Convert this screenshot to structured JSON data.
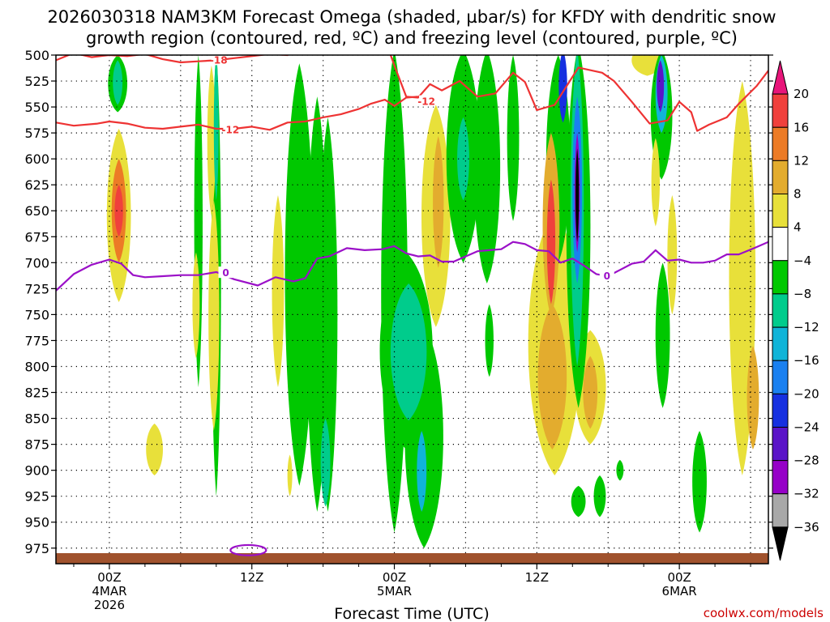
{
  "chart_data": {
    "type": "heatmap",
    "title_line1": "2026030318 NAM3KM Forecast Omega (shaded, µbar/s) for KFDY with dendritic snow",
    "title_line2": "growth region (contoured, red, ºC) and freezing level (contoured, purple, ºC)",
    "xlabel": "Forecast Time (UTC)",
    "credit": "coolwx.com/models",
    "x_range_hours": [
      -4.5,
      55.5
    ],
    "x_ticks": [
      {
        "hour": 0,
        "lines": [
          "00Z",
          "4MAR",
          "2026"
        ]
      },
      {
        "hour": 12,
        "lines": [
          "12Z"
        ]
      },
      {
        "hour": 24,
        "lines": [
          "00Z",
          "5MAR"
        ]
      },
      {
        "hour": 36,
        "lines": [
          "12Z"
        ]
      },
      {
        "hour": 48,
        "lines": [
          "00Z",
          "6MAR"
        ]
      }
    ],
    "y_range_hpa": [
      500,
      990
    ],
    "y_ticks": [
      "500",
      "525",
      "550",
      "575",
      "600",
      "625",
      "650",
      "675",
      "700",
      "725",
      "750",
      "775",
      "800",
      "825",
      "850",
      "875",
      "900",
      "925",
      "950",
      "975"
    ],
    "colorbar": {
      "labels": [
        "20",
        "16",
        "12",
        "8",
        "4",
        "−4",
        "−8",
        "−12",
        "−16",
        "−20",
        "−24",
        "−28",
        "−32",
        "−36"
      ],
      "colors": [
        "#e8157a",
        "#f0403c",
        "#ec7b26",
        "#e3ac2e",
        "#e8e03a",
        "#ffffff",
        "#00c800",
        "#00cc8c",
        "#10b4d8",
        "#1a80f0",
        "#1630e0",
        "#5a14c8",
        "#9600c8",
        "#a8a8a8",
        "#000000"
      ]
    },
    "ground_color": "#a0522d",
    "omega_regions": [
      {
        "hour": 0.8,
        "p_top": 571,
        "p_bot": 738,
        "half_width": 1.0,
        "value": 6
      },
      {
        "hour": 0.8,
        "p_top": 600,
        "p_bot": 700,
        "half_width": 0.6,
        "value": 12
      },
      {
        "hour": 0.8,
        "p_top": 625,
        "p_bot": 675,
        "half_width": 0.35,
        "value": 18
      },
      {
        "hour": 0.7,
        "p_top": 500,
        "p_bot": 555,
        "half_width": 0.8,
        "value": -6
      },
      {
        "hour": 0.7,
        "p_top": 505,
        "p_bot": 548,
        "half_width": 0.4,
        "value": -10
      },
      {
        "hour": 3.8,
        "p_top": 855,
        "p_bot": 905,
        "half_width": 0.7,
        "value": 6
      },
      {
        "hour": 7.5,
        "p_top": 500,
        "p_bot": 820,
        "half_width": 0.35,
        "value": -6
      },
      {
        "hour": 7.3,
        "p_top": 690,
        "p_bot": 792,
        "half_width": 0.3,
        "value": 6
      },
      {
        "hour": 9.0,
        "p_top": 495,
        "p_bot": 925,
        "half_width": 0.4,
        "value": -6
      },
      {
        "hour": 8.6,
        "p_top": 510,
        "p_bot": 655,
        "half_width": 0.35,
        "value": 6
      },
      {
        "hour": 8.8,
        "p_top": 640,
        "p_bot": 862,
        "half_width": 0.45,
        "value": 6
      },
      {
        "hour": 9.0,
        "p_top": 500,
        "p_bot": 640,
        "half_width": 0.2,
        "value": -10
      },
      {
        "hour": 14.2,
        "p_top": 635,
        "p_bot": 820,
        "half_width": 0.5,
        "value": 6
      },
      {
        "hour": 15.2,
        "p_top": 885,
        "p_bot": 925,
        "half_width": 0.2,
        "value": 6
      },
      {
        "hour": 16.0,
        "p_top": 508,
        "p_bot": 915,
        "half_width": 1.2,
        "value": -6
      },
      {
        "hour": 17.5,
        "p_top": 540,
        "p_bot": 940,
        "half_width": 0.9,
        "value": -6
      },
      {
        "hour": 18.4,
        "p_top": 560,
        "p_bot": 940,
        "half_width": 0.8,
        "value": -6
      },
      {
        "hour": 18.2,
        "p_top": 850,
        "p_bot": 935,
        "half_width": 0.4,
        "value": -10
      },
      {
        "hour": 24.0,
        "p_top": 495,
        "p_bot": 960,
        "half_width": 1.1,
        "value": -6
      },
      {
        "hour": 25.0,
        "p_top": 690,
        "p_bot": 880,
        "half_width": 2.2,
        "value": -6
      },
      {
        "hour": 26.5,
        "p_top": 760,
        "p_bot": 975,
        "half_width": 1.6,
        "value": -6
      },
      {
        "hour": 25.2,
        "p_top": 720,
        "p_bot": 852,
        "half_width": 1.5,
        "value": -10
      },
      {
        "hour": 26.3,
        "p_top": 862,
        "p_bot": 940,
        "half_width": 0.4,
        "value": -14
      },
      {
        "hour": 27.5,
        "p_top": 548,
        "p_bot": 762,
        "half_width": 1.2,
        "value": 6
      },
      {
        "hour": 27.7,
        "p_top": 578,
        "p_bot": 705,
        "half_width": 0.45,
        "value": 10
      },
      {
        "hour": 29.8,
        "p_top": 495,
        "p_bot": 700,
        "half_width": 1.4,
        "value": -6
      },
      {
        "hour": 31.8,
        "p_top": 495,
        "p_bot": 720,
        "half_width": 1.1,
        "value": -6
      },
      {
        "hour": 29.8,
        "p_top": 560,
        "p_bot": 640,
        "half_width": 0.5,
        "value": -10
      },
      {
        "hour": 32.0,
        "p_top": 740,
        "p_bot": 810,
        "half_width": 0.35,
        "value": -6
      },
      {
        "hour": 34.0,
        "p_top": 500,
        "p_bot": 660,
        "half_width": 0.5,
        "value": -6
      },
      {
        "hour": 37.5,
        "p_top": 650,
        "p_bot": 905,
        "half_width": 2.2,
        "value": 6
      },
      {
        "hour": 37.3,
        "p_top": 740,
        "p_bot": 880,
        "half_width": 1.2,
        "value": 10
      },
      {
        "hour": 40.5,
        "p_top": 765,
        "p_bot": 875,
        "half_width": 1.3,
        "value": 6
      },
      {
        "hour": 40.5,
        "p_top": 790,
        "p_bot": 860,
        "half_width": 0.6,
        "value": 10
      },
      {
        "hour": 37.8,
        "p_top": 500,
        "p_bot": 700,
        "half_width": 1.0,
        "value": -6
      },
      {
        "hour": 38.2,
        "p_top": 495,
        "p_bot": 565,
        "half_width": 0.35,
        "value": -20
      },
      {
        "hour": 37.2,
        "p_top": 575,
        "p_bot": 752,
        "half_width": 0.7,
        "value": 10
      },
      {
        "hour": 37.2,
        "p_top": 620,
        "p_bot": 740,
        "half_width": 0.35,
        "value": 16
      },
      {
        "hour": 39.5,
        "p_top": 490,
        "p_bot": 840,
        "half_width": 1.0,
        "value": -6
      },
      {
        "hour": 39.4,
        "p_top": 495,
        "p_bot": 800,
        "half_width": 0.55,
        "value": -10
      },
      {
        "hour": 39.4,
        "p_top": 540,
        "p_bot": 720,
        "half_width": 0.4,
        "value": -18
      },
      {
        "hour": 39.4,
        "p_top": 575,
        "p_bot": 690,
        "half_width": 0.22,
        "value": -30
      },
      {
        "hour": 39.4,
        "p_top": 590,
        "p_bot": 680,
        "half_width": 0.14,
        "value": -40
      },
      {
        "hour": 39.5,
        "p_top": 915,
        "p_bot": 945,
        "half_width": 0.6,
        "value": -6
      },
      {
        "hour": 41.3,
        "p_top": 905,
        "p_bot": 945,
        "half_width": 0.5,
        "value": -6
      },
      {
        "hour": 43.0,
        "p_top": 890,
        "p_bot": 910,
        "half_width": 0.3,
        "value": -6
      },
      {
        "hour": 45.3,
        "p_top": 490,
        "p_bot": 520,
        "half_width": 1.3,
        "value": 6
      },
      {
        "hour": 46.5,
        "p_top": 495,
        "p_bot": 620,
        "half_width": 0.9,
        "value": -6
      },
      {
        "hour": 46.5,
        "p_top": 500,
        "p_bot": 575,
        "half_width": 0.5,
        "value": -14
      },
      {
        "hour": 46.4,
        "p_top": 505,
        "p_bot": 555,
        "half_width": 0.3,
        "value": -26
      },
      {
        "hour": 46.6,
        "p_top": 700,
        "p_bot": 840,
        "half_width": 0.6,
        "value": -6
      },
      {
        "hour": 47.4,
        "p_top": 635,
        "p_bot": 750,
        "half_width": 0.4,
        "value": 6
      },
      {
        "hour": 46.0,
        "p_top": 580,
        "p_bot": 665,
        "half_width": 0.35,
        "value": 6
      },
      {
        "hour": 49.7,
        "p_top": 862,
        "p_bot": 960,
        "half_width": 0.6,
        "value": -6
      },
      {
        "hour": 53.3,
        "p_top": 525,
        "p_bot": 905,
        "half_width": 1.1,
        "value": 6
      },
      {
        "hour": 54.2,
        "p_top": 780,
        "p_bot": 880,
        "half_width": 0.5,
        "value": 10
      }
    ],
    "contours": [
      {
        "name": "dendritic-minus18",
        "color": "#ee3333",
        "label": "-18",
        "label_at": [
          9.2,
          505
        ],
        "points": [
          [
            -4.5,
            505
          ],
          [
            -3,
            498
          ],
          [
            -1.5,
            502
          ],
          [
            0,
            500
          ],
          [
            1.5,
            501
          ],
          [
            3,
            499
          ],
          [
            4.5,
            504
          ],
          [
            6,
            507
          ],
          [
            7.5,
            506
          ],
          [
            9,
            505
          ],
          [
            10.5,
            503
          ],
          [
            12,
            501
          ],
          [
            13.5,
            499
          ],
          [
            15,
            500
          ],
          [
            16,
            495
          ],
          [
            17.5,
            490
          ]
        ]
      },
      {
        "name": "dendritic-minus12-upper",
        "color": "#ee3333",
        "label": "-12",
        "label_at": [
          26.7,
          545
        ],
        "points": [
          [
            17.5,
            493
          ],
          [
            20,
            492
          ],
          [
            22,
            489
          ],
          [
            23.5,
            494
          ],
          [
            24,
            510
          ],
          [
            25,
            540
          ],
          [
            26,
            541
          ],
          [
            27,
            528
          ],
          [
            28,
            534
          ],
          [
            29.5,
            525
          ],
          [
            31,
            540
          ],
          [
            32.5,
            537
          ],
          [
            34,
            517
          ],
          [
            35,
            526
          ],
          [
            36,
            553
          ],
          [
            37.5,
            548
          ],
          [
            38.5,
            530
          ],
          [
            39.5,
            512
          ],
          [
            41.5,
            517
          ],
          [
            42.5,
            525
          ],
          [
            44,
            545
          ],
          [
            45.5,
            566
          ],
          [
            47,
            563
          ],
          [
            48,
            545
          ],
          [
            49,
            555
          ],
          [
            49.5,
            573
          ],
          [
            50.5,
            567
          ],
          [
            52,
            560
          ],
          [
            53,
            547
          ],
          [
            54.5,
            530
          ],
          [
            55.5,
            515
          ]
        ]
      },
      {
        "name": "dendritic-minus12-lower",
        "color": "#ee3333",
        "label": "-12",
        "label_at": [
          10.2,
          572
        ],
        "points": [
          [
            -4.5,
            565
          ],
          [
            -3,
            568
          ],
          [
            -1,
            566
          ],
          [
            0,
            564
          ],
          [
            1.5,
            566
          ],
          [
            3,
            570
          ],
          [
            4.5,
            571
          ],
          [
            6,
            569
          ],
          [
            7.5,
            567
          ],
          [
            9,
            571
          ],
          [
            10.5,
            571
          ],
          [
            12,
            569
          ],
          [
            13.5,
            572
          ],
          [
            15,
            565
          ],
          [
            16.5,
            564
          ],
          [
            18,
            560
          ],
          [
            19.5,
            557
          ],
          [
            21,
            552
          ],
          [
            22,
            547
          ],
          [
            23.2,
            543
          ],
          [
            24,
            549
          ],
          [
            25,
            541
          ],
          [
            26,
            540
          ]
        ]
      },
      {
        "name": "freezing-level",
        "color": "#9b10c8",
        "label": "0",
        "label_at": [
          9.8,
          710
        ],
        "label2": "0",
        "label2_at": [
          41.9,
          713
        ],
        "points": [
          [
            -4.5,
            727
          ],
          [
            -3,
            711
          ],
          [
            -1.5,
            702
          ],
          [
            0,
            697
          ],
          [
            1,
            701
          ],
          [
            2,
            712
          ],
          [
            3,
            714
          ],
          [
            4.5,
            713
          ],
          [
            6,
            712
          ],
          [
            7.5,
            712
          ],
          [
            9,
            709
          ],
          [
            10.5,
            716
          ],
          [
            12.5,
            722
          ],
          [
            14,
            714
          ],
          [
            15.5,
            718
          ],
          [
            16.5,
            715
          ],
          [
            17.5,
            696
          ],
          [
            18.5,
            694
          ],
          [
            20,
            686
          ],
          [
            21.5,
            688
          ],
          [
            23,
            687
          ],
          [
            24,
            684
          ],
          [
            25,
            691
          ],
          [
            26,
            694
          ],
          [
            27,
            693
          ],
          [
            28,
            699
          ],
          [
            29,
            699
          ],
          [
            30,
            694
          ],
          [
            31,
            689
          ],
          [
            32,
            688
          ],
          [
            33,
            687
          ],
          [
            34,
            680
          ],
          [
            35,
            682
          ],
          [
            36,
            688
          ],
          [
            37,
            689
          ],
          [
            38,
            700
          ],
          [
            39,
            696
          ],
          [
            40,
            703
          ],
          [
            41,
            711
          ],
          [
            42,
            713
          ],
          [
            43,
            707
          ],
          [
            44,
            701
          ],
          [
            45,
            699
          ],
          [
            46,
            688
          ],
          [
            47,
            698
          ],
          [
            48,
            697
          ],
          [
            49,
            700
          ],
          [
            50,
            700
          ],
          [
            51,
            698
          ],
          [
            52,
            692
          ],
          [
            53,
            692
          ],
          [
            54.3,
            686
          ],
          [
            55.5,
            680
          ]
        ]
      },
      {
        "name": "freezing-level-loop",
        "color": "#9b10c8",
        "label": "",
        "ellipse": {
          "hour": 11.7,
          "p": 977,
          "rx_hours": 1.5,
          "ry_hpa": 5
        }
      }
    ]
  }
}
